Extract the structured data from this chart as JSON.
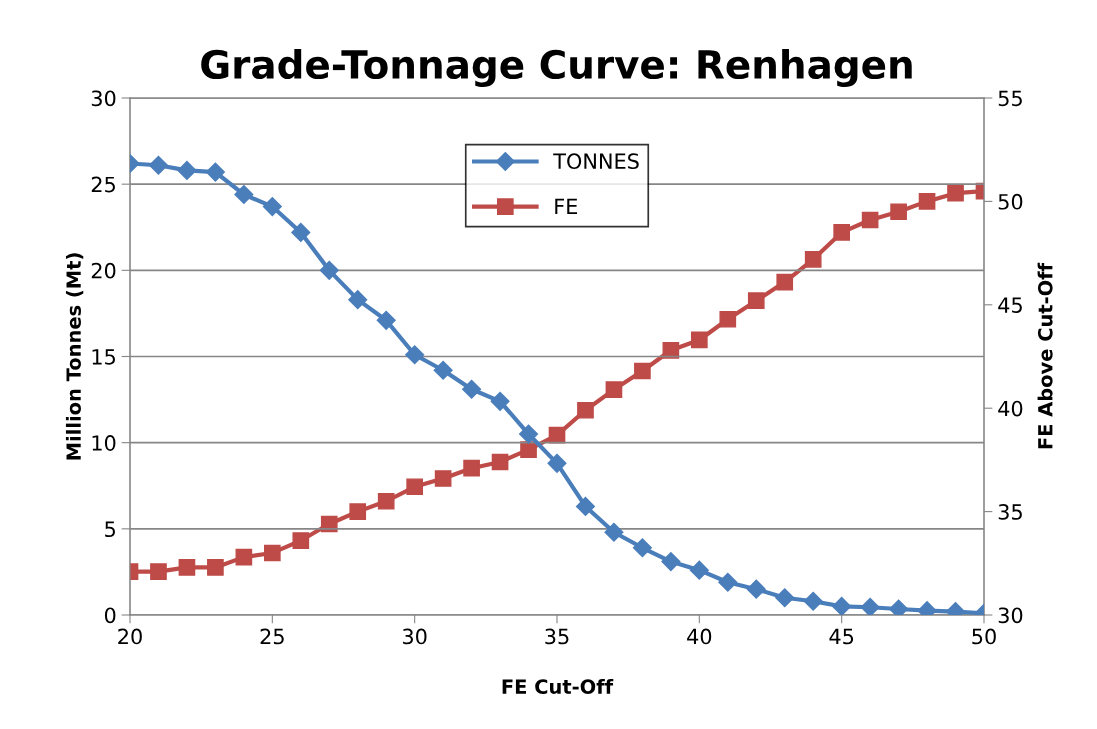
{
  "chart_data": {
    "type": "line",
    "title": "Grade-Tonnage Curve: Renhagen",
    "xlabel": "FE Cut-Off",
    "ylabel": "Million Tonnes (Mt)",
    "y2label": "FE Above Cut-Off",
    "x": [
      20,
      21,
      22,
      23,
      24,
      25,
      26,
      27,
      28,
      29,
      30,
      31,
      32,
      33,
      34,
      35,
      36,
      37,
      38,
      39,
      40,
      41,
      42,
      43,
      44,
      45,
      46,
      47,
      48,
      49,
      50
    ],
    "series": [
      {
        "name": "TONNES",
        "color": "#4a7ebb",
        "marker": "diamond",
        "values": [
          26.2,
          26.1,
          25.8,
          25.7,
          24.4,
          23.7,
          22.2,
          20.0,
          18.3,
          17.1,
          15.1,
          14.2,
          13.1,
          12.4,
          10.5,
          8.8,
          6.3,
          4.8,
          3.9,
          3.1,
          2.6,
          1.9,
          1.5,
          1.0,
          0.8,
          0.5,
          0.45,
          0.35,
          0.25,
          0.2,
          0.1
        ]
      },
      {
        "name": "FE",
        "color": "#be4b48",
        "marker": "square",
        "axis": "y2",
        "values": [
          32.1,
          32.1,
          32.3,
          32.3,
          32.8,
          33.0,
          33.6,
          34.4,
          35.0,
          35.5,
          36.2,
          36.6,
          37.1,
          37.4,
          38.0,
          38.7,
          39.9,
          40.9,
          41.8,
          42.8,
          43.3,
          44.3,
          45.2,
          46.1,
          47.2,
          48.5,
          49.1,
          49.5,
          50.0,
          50.4,
          50.5
        ]
      }
    ],
    "xlim": [
      20,
      50
    ],
    "xticks": [
      20,
      25,
      30,
      35,
      40,
      45,
      50
    ],
    "ylim": [
      0,
      30
    ],
    "yticks": [
      0,
      5,
      10,
      15,
      20,
      25,
      30
    ],
    "y2lim": [
      30,
      55
    ],
    "y2ticks": [
      30,
      35,
      40,
      45,
      50,
      55
    ],
    "grid": "y",
    "legend": "top center"
  }
}
